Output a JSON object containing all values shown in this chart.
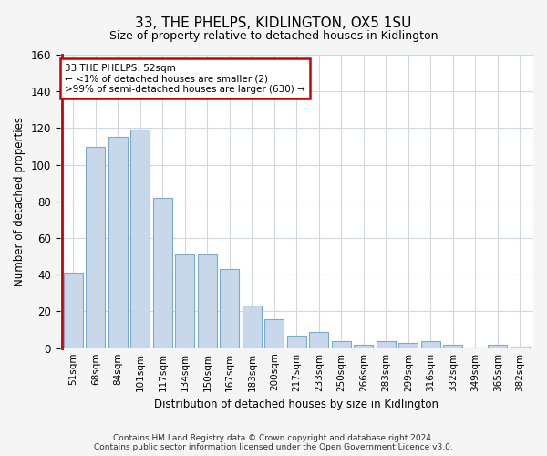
{
  "title": "33, THE PHELPS, KIDLINGTON, OX5 1SU",
  "subtitle": "Size of property relative to detached houses in Kidlington",
  "xlabel": "Distribution of detached houses by size in Kidlington",
  "ylabel": "Number of detached properties",
  "categories": [
    "51sqm",
    "68sqm",
    "84sqm",
    "101sqm",
    "117sqm",
    "134sqm",
    "150sqm",
    "167sqm",
    "183sqm",
    "200sqm",
    "217sqm",
    "233sqm",
    "250sqm",
    "266sqm",
    "283sqm",
    "299sqm",
    "316sqm",
    "332sqm",
    "349sqm",
    "365sqm",
    "382sqm"
  ],
  "values": [
    41,
    110,
    115,
    119,
    82,
    51,
    51,
    43,
    23,
    16,
    7,
    9,
    4,
    2,
    4,
    3,
    4,
    2,
    0,
    2,
    1
  ],
  "bar_color": "#c8d8ea",
  "bar_edge_color": "#7aaace",
  "annotation_line1": "33 THE PHELPS: 52sqm",
  "annotation_line2": "← <1% of detached houses are smaller (2)",
  "annotation_line3": ">99% of semi-detached houses are larger (630) →",
  "annotation_box_color": "#ffffff",
  "annotation_box_edge_color": "#cc0000",
  "ylim": [
    0,
    160
  ],
  "footer1": "Contains HM Land Registry data © Crown copyright and database right 2024.",
  "footer2": "Contains public sector information licensed under the Open Government Licence v3.0.",
  "bg_color": "#f5f5f5",
  "plot_bg_color": "#ffffff",
  "grid_color": "#d0d8e0"
}
